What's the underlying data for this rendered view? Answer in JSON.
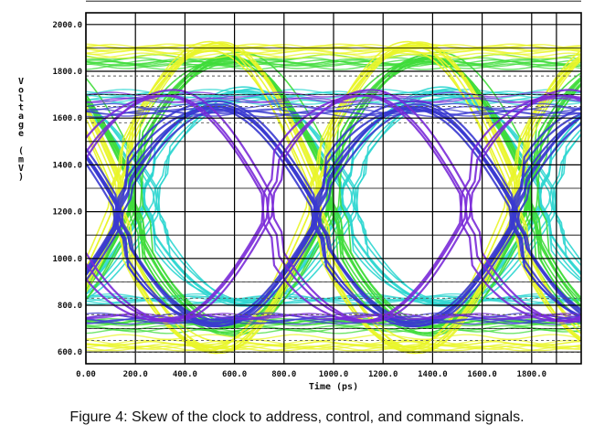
{
  "caption": "Figure 4: Skew of the clock to address, control, and command signals.",
  "chart_data": {
    "type": "line",
    "title": "",
    "xlabel": "Time (ps)",
    "ylabel": "Voltage (mV)",
    "xlim": [
      0,
      2000
    ],
    "ylim": [
      550,
      2050
    ],
    "x_ticks": [
      "0.00",
      "200.0",
      "400.0",
      "600.0",
      "800.0",
      "1000.0",
      "1200.0",
      "1400.0",
      "1600.0",
      "1800.0"
    ],
    "y_ticks": [
      "600.0",
      "800.0",
      "1000.0",
      "1200.0",
      "1400.0",
      "1600.0",
      "1800.0",
      "2000.0"
    ],
    "x_tick_values": [
      0,
      200,
      400,
      600,
      800,
      1000,
      1200,
      1400,
      1600,
      1800
    ],
    "y_tick_values": [
      600,
      800,
      1000,
      1200,
      1400,
      1600,
      1800,
      2000
    ],
    "grid": true,
    "reference_levels": [
      600,
      650,
      700,
      760,
      830,
      900,
      1580,
      1650,
      1700,
      1780
    ],
    "unit_interval_ps": 800,
    "series": [
      {
        "group": "cyan-low-swing",
        "color": "#2ed6d0",
        "low": 810,
        "high": 1710,
        "crossings": [
          1060,
          1860
        ],
        "count": 7
      },
      {
        "group": "green-overshoot",
        "color": "#3fdc3a",
        "low": 690,
        "high": 1860,
        "crossings": [
          1000,
          1800
        ],
        "count": 9
      },
      {
        "group": "yellow-overshoot",
        "color": "#e9f52a",
        "low": 620,
        "high": 1910,
        "crossings": [
          920,
          1720
        ],
        "count": 9
      },
      {
        "group": "blue-clock",
        "color": "#3a3ad0",
        "low": 730,
        "high": 1660,
        "crossings": [
          940,
          1740
        ],
        "count": 6
      },
      {
        "group": "purple-clock",
        "color": "#7a2ad8",
        "low": 730,
        "high": 1700,
        "crossings": [
          740,
          1540
        ],
        "count": 3
      }
    ]
  }
}
